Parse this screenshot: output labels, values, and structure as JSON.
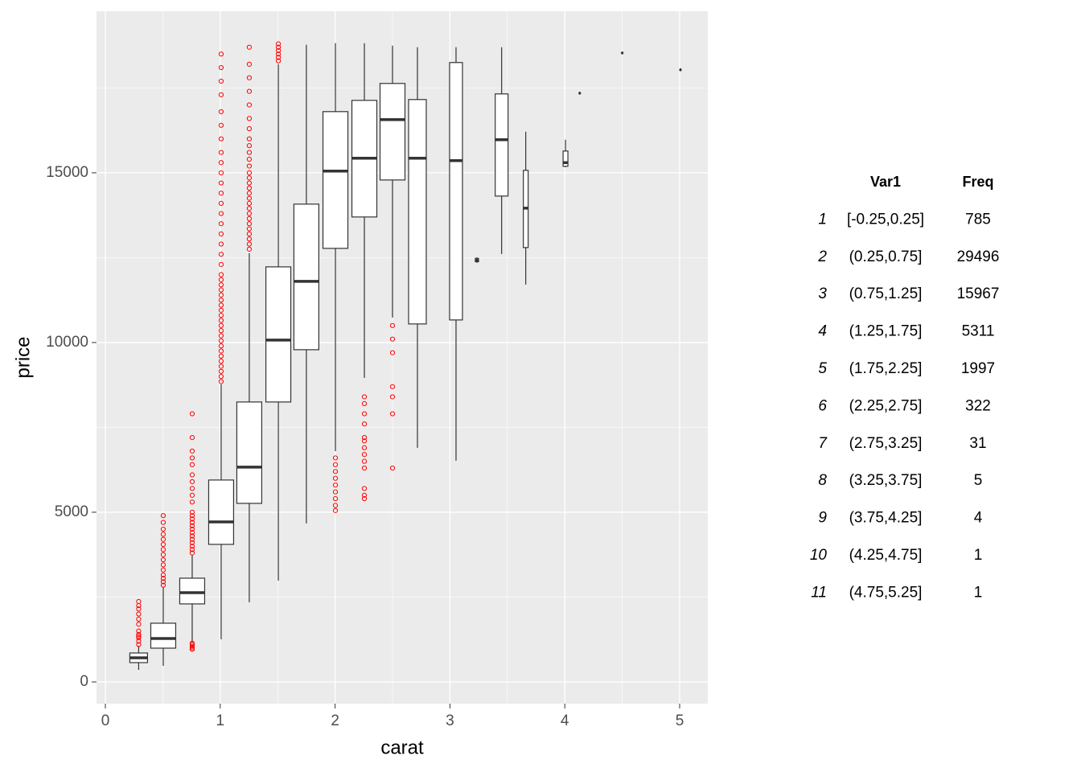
{
  "chart_data": {
    "type": "boxplot",
    "x_label": "carat",
    "y_label": "price",
    "xlim": [
      -0.077,
      5.245
    ],
    "ylim": [
      -640,
      19760
    ],
    "xticks": [
      0,
      1,
      2,
      3,
      4,
      5
    ],
    "yticks": [
      0,
      5000,
      10000,
      15000
    ],
    "minor_xticks": [
      0.5,
      1.5,
      2.5,
      3.5,
      4.5
    ],
    "minor_yticks": [
      2500,
      7500,
      12500,
      17500
    ],
    "grid": true,
    "box_color": "#333333",
    "outlier_color": "#ff0000",
    "boxes": [
      {
        "x": 0.29,
        "width": 0.154,
        "whisker_low": 355,
        "q1": 569,
        "median": 711,
        "q3": 853,
        "whisker_high": 1066,
        "outliers": [
          1100,
          1200,
          1300,
          1350,
          1400,
          1500,
          1700,
          1850,
          2000,
          2150,
          2250,
          2370
        ]
      },
      {
        "x": 0.504,
        "width": 0.217,
        "whisker_low": 474,
        "q1": 995,
        "median": 1280,
        "q3": 1730,
        "whisker_high": 2797,
        "outliers": [
          2850,
          2950,
          3050,
          3150,
          3300,
          3450,
          3600,
          3750,
          3900,
          4050,
          4200,
          4350,
          4500,
          4700,
          4900
        ]
      },
      {
        "x": 0.756,
        "width": 0.217,
        "whisker_low": 1150,
        "q1": 2299,
        "median": 2631,
        "q3": 3057,
        "whisker_high": 3745,
        "outliers": [
          960,
          1000,
          1050,
          1100,
          1140,
          3800,
          3900,
          4000,
          4100,
          4200,
          4300,
          4400,
          4500,
          4600,
          4700,
          4800,
          4900,
          5000,
          5300,
          5500,
          5700,
          5900,
          6100,
          6400,
          6600,
          6800,
          7200,
          7900
        ]
      },
      {
        "x": 1.008,
        "width": 0.217,
        "whisker_low": 1256,
        "q1": 4053,
        "median": 4716,
        "q3": 5949,
        "whisker_high": 8769,
        "outliers": [
          8850,
          9000,
          9150,
          9300,
          9450,
          9600,
          9750,
          9900,
          10050,
          10200,
          10350,
          10500,
          10650,
          10800,
          10950,
          11100,
          11250,
          11400,
          11550,
          11700,
          11850,
          12000,
          12300,
          12600,
          12900,
          13200,
          13500,
          13800,
          14100,
          14400,
          14700,
          15000,
          15300,
          15600,
          16000,
          16400,
          16800,
          17300,
          17700,
          18100,
          18500
        ]
      },
      {
        "x": 1.253,
        "width": 0.217,
        "whisker_low": 2346,
        "q1": 5261,
        "median": 6328,
        "q3": 8248,
        "whisker_high": 12632,
        "outliers": [
          12750,
          12900,
          13050,
          13200,
          13350,
          13500,
          13650,
          13800,
          13950,
          14100,
          14250,
          14400,
          14550,
          14700,
          14850,
          15000,
          15200,
          15400,
          15600,
          15800,
          16000,
          16300,
          16600,
          17000,
          17400,
          17800,
          18200,
          18700
        ]
      },
      {
        "x": 1.506,
        "width": 0.217,
        "whisker_low": 2986,
        "q1": 8248,
        "median": 10073,
        "q3": 12229,
        "whisker_high": 18200,
        "outliers": [
          18300,
          18400,
          18500,
          18600,
          18700,
          18800
        ]
      },
      {
        "x": 1.75,
        "width": 0.217,
        "whisker_low": 4669,
        "q1": 9788,
        "median": 11803,
        "q3": 14078,
        "whisker_high": 18770,
        "outliers": []
      },
      {
        "x": 2.003,
        "width": 0.217,
        "whisker_low": 6800,
        "q1": 12774,
        "median": 15050,
        "q3": 16803,
        "whisker_high": 18818,
        "outliers": [
          5050,
          5200,
          5400,
          5600,
          5800,
          6000,
          6200,
          6400,
          6600
        ]
      },
      {
        "x": 2.255,
        "width": 0.217,
        "whisker_low": 8959,
        "q1": 13699,
        "median": 15429,
        "q3": 17135,
        "whisker_high": 18818,
        "outliers": [
          5400,
          5500,
          5700,
          6300,
          6500,
          6700,
          6900,
          7100,
          7200,
          7600,
          7900,
          8200,
          8400
        ]
      },
      {
        "x": 2.5,
        "width": 0.217,
        "whisker_low": 10736,
        "q1": 14789,
        "median": 16566,
        "q3": 17633,
        "whisker_high": 18747,
        "outliers": [
          6300,
          7900,
          8400,
          8700,
          9700,
          10100,
          10500
        ]
      },
      {
        "x": 2.717,
        "width": 0.154,
        "whisker_low": 6897,
        "q1": 10547,
        "median": 15429,
        "q3": 17159,
        "whisker_high": 18700,
        "outliers": []
      },
      {
        "x": 3.053,
        "width": 0.112,
        "whisker_low": 6518,
        "q1": 10665,
        "median": 15358,
        "q3": 18249,
        "whisker_high": 18700,
        "outliers": []
      },
      {
        "x": 3.235,
        "width": 0.028,
        "whisker_low": 12350,
        "q1": 12380,
        "median": 12420,
        "q3": 12480,
        "whisker_high": 12510,
        "outliers": []
      },
      {
        "x": 3.45,
        "width": 0.112,
        "whisker_low": 12608,
        "q1": 14315,
        "median": 15974,
        "q3": 17325,
        "whisker_high": 18700,
        "outliers": []
      },
      {
        "x": 3.66,
        "width": 0.042,
        "whisker_low": 11708,
        "q1": 12798,
        "median": 13959,
        "q3": 15073,
        "whisker_high": 16211,
        "outliers": []
      },
      {
        "x": 4.006,
        "width": 0.042,
        "whisker_low": 15168,
        "q1": 15192,
        "median": 15300,
        "q3": 15642,
        "whisker_high": 15974,
        "outliers": []
      },
      {
        "x": 4.13,
        "width": 0.014,
        "whisker_low": 17348,
        "q1": 17348,
        "median": 17348,
        "q3": 17348,
        "whisker_high": 17348,
        "outliers": []
      },
      {
        "x": 4.5,
        "width": 0.014,
        "whisker_low": 18533,
        "q1": 18533,
        "median": 18533,
        "q3": 18533,
        "whisker_high": 18533,
        "outliers": []
      },
      {
        "x": 5.007,
        "width": 0.014,
        "whisker_low": 18036,
        "q1": 18036,
        "median": 18036,
        "q3": 18036,
        "whisker_high": 18036,
        "outliers": []
      }
    ]
  },
  "table": {
    "columns": [
      "Var1",
      "Freq"
    ],
    "rows": [
      [
        "1",
        "[-0.25,0.25]",
        785
      ],
      [
        "2",
        "(0.25,0.75]",
        29496
      ],
      [
        "3",
        "(0.75,1.25]",
        15967
      ],
      [
        "4",
        "(1.25,1.75]",
        5311
      ],
      [
        "5",
        "(1.75,2.25]",
        1997
      ],
      [
        "6",
        "(2.25,2.75]",
        322
      ],
      [
        "7",
        "(2.75,3.25]",
        31
      ],
      [
        "8",
        "(3.25,3.75]",
        5
      ],
      [
        "9",
        "(3.75,4.25]",
        4
      ],
      [
        "10",
        "(4.25,4.75]",
        1
      ],
      [
        "11",
        "(4.75,5.25]",
        1
      ]
    ]
  }
}
